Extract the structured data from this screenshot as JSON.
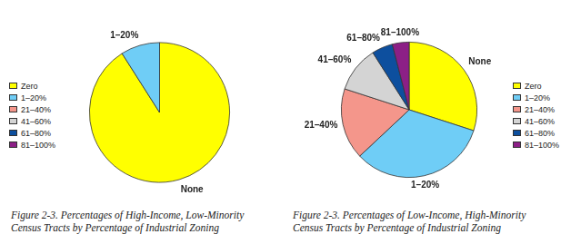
{
  "chart_data": [
    {
      "type": "pie",
      "title": "Figure 2-3. Percentages of High-Income, Low-Minority Census Tracts by Percentage of Industrial Zoning",
      "categories": [
        "Zero",
        "1–20%",
        "21–40%",
        "41–60%",
        "61–80%",
        "81–100%"
      ],
      "values": [
        91,
        9,
        0,
        0,
        0,
        0
      ],
      "slice_labels": [
        "None",
        "1–20%",
        null,
        null,
        null,
        null
      ],
      "colors": [
        "#ffff00",
        "#6fcdf6",
        "#f4968b",
        "#d4d4d4",
        "#0d4f9e",
        "#8c1f86"
      ],
      "legend": "left"
    },
    {
      "type": "pie",
      "title": "Figure 2-3. Percentages of Low-Income, High-Minority Census Tracts by Percentage of Industrial Zoning",
      "categories": [
        "Zero",
        "1–20%",
        "21–40%",
        "41–60%",
        "61–80%",
        "81–100%"
      ],
      "values": [
        30,
        33,
        17,
        11,
        5,
        4
      ],
      "slice_labels": [
        "None",
        "1–20%",
        "21–40%",
        "41–60%",
        "61–80%",
        "81–100%"
      ],
      "colors": [
        "#ffff00",
        "#6fcdf6",
        "#f4968b",
        "#d4d4d4",
        "#0d4f9e",
        "#8c1f86"
      ],
      "legend": "right"
    }
  ]
}
